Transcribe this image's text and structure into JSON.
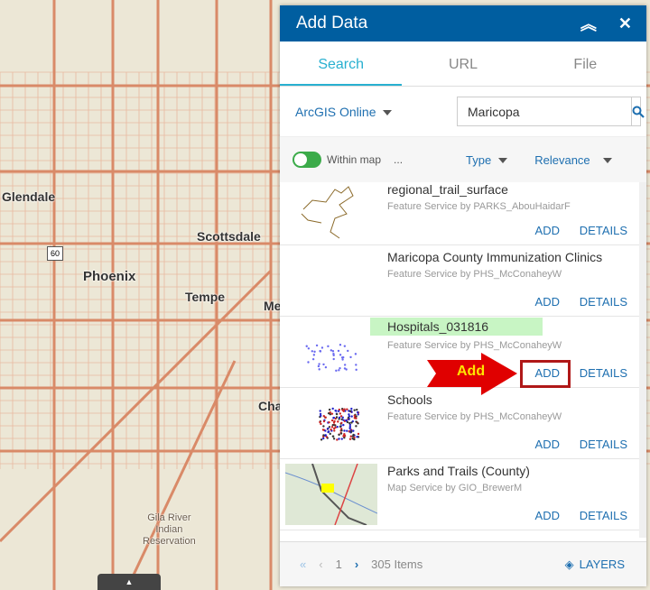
{
  "map": {
    "labels": [
      "Glendale",
      "Scottsdale",
      "Phoenix",
      "Tempe",
      "Me",
      "Cha"
    ],
    "reservation": "Gila River\nIndian\nReservation",
    "shield": "60",
    "toggle_icon": "triangle-up-icon"
  },
  "panel": {
    "title": "Add Data",
    "collapse_icon": "double-chevron-up-icon",
    "close_icon": "close-icon",
    "tabs": [
      {
        "label": "Search",
        "active": true
      },
      {
        "label": "URL"
      },
      {
        "label": "File"
      }
    ],
    "source": "ArcGIS Online",
    "search_value": "Maricopa",
    "search_icon": "search-icon",
    "within_map": "Within map",
    "within_map_on": true,
    "more": "...",
    "type": "Type",
    "sort": "Relevance",
    "items": [
      {
        "name": "regional_trail_surface",
        "sub": "Feature Service by PARKS_AbouHaidarF",
        "add": "ADD",
        "details": "DETAILS"
      },
      {
        "name": "Maricopa County Immunization Clinics",
        "sub": "Feature Service by PHS_McConaheyW",
        "add": "ADD",
        "details": "DETAILS"
      },
      {
        "name": "Hospitals_031816",
        "sub": "Feature Service by PHS_McConaheyW",
        "add": "ADD",
        "details": "DETAILS"
      },
      {
        "name": "Schools",
        "sub": "Feature Service by PHS_McConaheyW",
        "add": "ADD",
        "details": "DETAILS"
      },
      {
        "name": "Parks and Trails (County)",
        "sub": "Map Service by GIO_BrewerM",
        "add": "ADD",
        "details": "DETAILS"
      }
    ],
    "annotation": "Add",
    "footer": {
      "first": "«",
      "prev": "‹",
      "page": "1",
      "next": "›",
      "count": "305 Items",
      "layers": "LAYERS"
    }
  },
  "colors": {
    "header": "#005ea0",
    "accent": "#28b0d0",
    "link": "#1e6fb0",
    "toggle": "#3cab4a",
    "highlight": "#c8f5c4",
    "annotation": "#e00000"
  }
}
